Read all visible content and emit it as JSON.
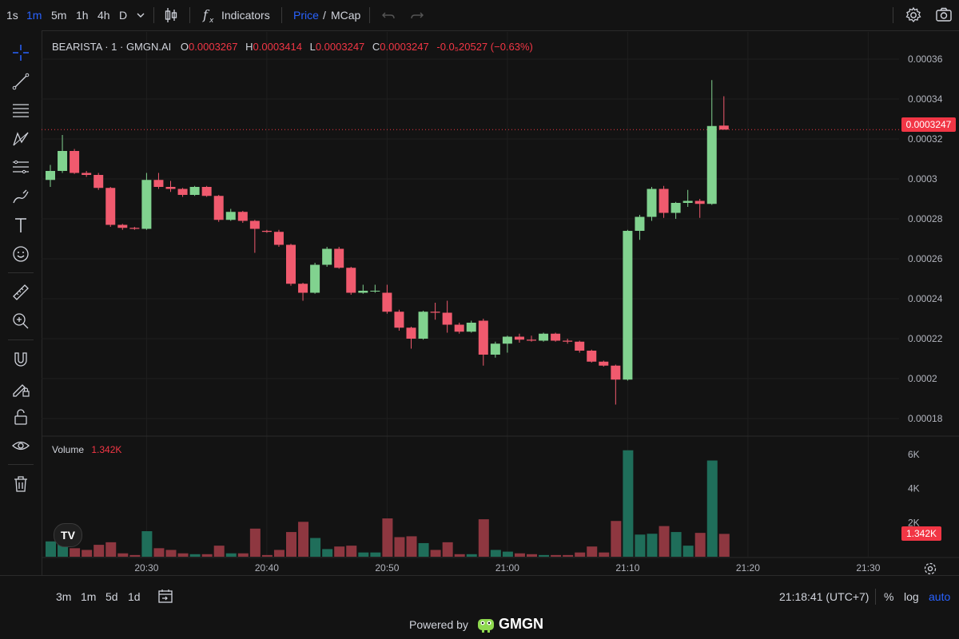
{
  "toolbar": {
    "intervals": [
      "1s",
      "1m",
      "5m",
      "1h",
      "4h",
      "D"
    ],
    "active_interval": "1m",
    "indicators_label": "Indicators",
    "price_label": "Price",
    "slash": "/",
    "mcap_label": "MCap"
  },
  "legend": {
    "symbol": "BEARISTA · 1 · GMGN.AI",
    "o_key": "O",
    "o_val": "0.0003267",
    "h_key": "H",
    "h_val": "0.0003414",
    "l_key": "L",
    "l_val": "0.0003247",
    "c_key": "C",
    "c_val": "0.0003247",
    "change": "-0.0₅20527 (−0.63%)"
  },
  "volume_legend": {
    "label": "Volume",
    "value": "1.342K"
  },
  "price_tag": "0.0003247",
  "volume_tag": "1.342K",
  "bottom": {
    "ranges": [
      "3m",
      "1m",
      "5d",
      "1d"
    ],
    "clock": "21:18:41 (UTC+7)",
    "percent": "%",
    "log": "log",
    "auto": "auto"
  },
  "footer": {
    "powered": "Powered by",
    "brand": "GMGN"
  },
  "colors": {
    "up": "#81d28f",
    "down": "#f05a6e",
    "vol_up": "#1f6e5a",
    "vol_down": "#8e3740",
    "accent": "#2962ff"
  },
  "chart_data": {
    "type": "candlestick",
    "price_axis_ticks": [
      "0.00036",
      "0.00034",
      "0.00032",
      "0.0003",
      "0.00028",
      "0.00026",
      "0.00024",
      "0.00022",
      "0.0002",
      "0.00018"
    ],
    "volume_axis_ticks": [
      "6K",
      "4K",
      "2K"
    ],
    "x_ticks": [
      "20:30",
      "20:40",
      "20:50",
      "21:00",
      "21:10",
      "21:20",
      "21:30"
    ],
    "price_ylim": [
      0.000172,
      0.000368
    ],
    "volume_ylim": [
      0,
      6800
    ],
    "current_price": 0.0003247,
    "candles": [
      {
        "o": 0.0002995,
        "h": 0.000307,
        "l": 0.000296,
        "c": 0.000304,
        "v": 900
      },
      {
        "o": 0.000304,
        "h": 0.000322,
        "l": 0.000303,
        "c": 0.000314,
        "v": 1100
      },
      {
        "o": 0.000314,
        "h": 0.000315,
        "l": 0.0003025,
        "c": 0.000303,
        "v": 500
      },
      {
        "o": 0.000303,
        "h": 0.000304,
        "l": 0.000301,
        "c": 0.000302,
        "v": 400
      },
      {
        "o": 0.000302,
        "h": 0.000303,
        "l": 0.0002945,
        "c": 0.0002955,
        "v": 700
      },
      {
        "o": 0.0002955,
        "h": 0.000296,
        "l": 0.000276,
        "c": 0.000277,
        "v": 850
      },
      {
        "o": 0.000277,
        "h": 0.0002775,
        "l": 0.0002745,
        "c": 0.0002755,
        "v": 200
      },
      {
        "o": 0.0002755,
        "h": 0.000276,
        "l": 0.0002745,
        "c": 0.000275,
        "v": 100
      },
      {
        "o": 0.000275,
        "h": 0.000303,
        "l": 0.0002745,
        "c": 0.0002995,
        "v": 1500
      },
      {
        "o": 0.0002995,
        "h": 0.000303,
        "l": 0.000295,
        "c": 0.000296,
        "v": 500
      },
      {
        "o": 0.000296,
        "h": 0.000299,
        "l": 0.0002935,
        "c": 0.000295,
        "v": 400
      },
      {
        "o": 0.000295,
        "h": 0.0002955,
        "l": 0.000291,
        "c": 0.000292,
        "v": 200
      },
      {
        "o": 0.000292,
        "h": 0.0002965,
        "l": 0.0002915,
        "c": 0.000296,
        "v": 150
      },
      {
        "o": 0.000296,
        "h": 0.0002965,
        "l": 0.000291,
        "c": 0.0002915,
        "v": 150
      },
      {
        "o": 0.0002915,
        "h": 0.000292,
        "l": 0.0002785,
        "c": 0.0002795,
        "v": 650
      },
      {
        "o": 0.0002795,
        "h": 0.000285,
        "l": 0.000279,
        "c": 0.0002835,
        "v": 200
      },
      {
        "o": 0.0002835,
        "h": 0.000284,
        "l": 0.000278,
        "c": 0.000279,
        "v": 200
      },
      {
        "o": 0.000279,
        "h": 0.0002795,
        "l": 0.000263,
        "c": 0.000275,
        "v": 1650
      },
      {
        "o": 0.000274,
        "h": 0.0002745,
        "l": 0.000273,
        "c": 0.0002735,
        "v": 100
      },
      {
        "o": 0.0002735,
        "h": 0.0002745,
        "l": 0.000266,
        "c": 0.000267,
        "v": 400
      },
      {
        "o": 0.000267,
        "h": 0.0002675,
        "l": 0.0002465,
        "c": 0.0002475,
        "v": 1450
      },
      {
        "o": 0.0002475,
        "h": 0.000248,
        "l": 0.000239,
        "c": 0.000243,
        "v": 2050
      },
      {
        "o": 0.000243,
        "h": 0.000258,
        "l": 0.0002425,
        "c": 0.000257,
        "v": 1100
      },
      {
        "o": 0.000257,
        "h": 0.000266,
        "l": 0.000256,
        "c": 0.000265,
        "v": 450
      },
      {
        "o": 0.000265,
        "h": 0.000266,
        "l": 0.000255,
        "c": 0.0002555,
        "v": 600
      },
      {
        "o": 0.0002555,
        "h": 0.000256,
        "l": 0.000242,
        "c": 0.000243,
        "v": 650
      },
      {
        "o": 0.000243,
        "h": 0.000247,
        "l": 0.0002425,
        "c": 0.000244,
        "v": 250
      },
      {
        "o": 0.000244,
        "h": 0.000247,
        "l": 0.000243,
        "c": 0.000244,
        "v": 250
      },
      {
        "o": 0.000243,
        "h": 0.000247,
        "l": 0.0002325,
        "c": 0.0002335,
        "v": 2250
      },
      {
        "o": 0.0002335,
        "h": 0.0002345,
        "l": 0.000224,
        "c": 0.0002255,
        "v": 1150
      },
      {
        "o": 0.0002255,
        "h": 0.000226,
        "l": 0.000215,
        "c": 0.00022,
        "v": 1200
      },
      {
        "o": 0.00022,
        "h": 0.000234,
        "l": 0.0002195,
        "c": 0.0002335,
        "v": 800
      },
      {
        "o": 0.0002335,
        "h": 0.000238,
        "l": 0.0002295,
        "c": 0.000233,
        "v": 400
      },
      {
        "o": 0.000233,
        "h": 0.000239,
        "l": 0.000223,
        "c": 0.000227,
        "v": 850
      },
      {
        "o": 0.000227,
        "h": 0.000228,
        "l": 0.0002225,
        "c": 0.0002235,
        "v": 150
      },
      {
        "o": 0.0002235,
        "h": 0.000229,
        "l": 0.000223,
        "c": 0.000228,
        "v": 150
      },
      {
        "o": 0.000229,
        "h": 0.00023,
        "l": 0.0002065,
        "c": 0.000212,
        "v": 2200
      },
      {
        "o": 0.000212,
        "h": 0.0002185,
        "l": 0.0002105,
        "c": 0.0002175,
        "v": 400
      },
      {
        "o": 0.0002175,
        "h": 0.0002215,
        "l": 0.000213,
        "c": 0.000221,
        "v": 300
      },
      {
        "o": 0.000221,
        "h": 0.0002225,
        "l": 0.000218,
        "c": 0.0002195,
        "v": 200
      },
      {
        "o": 0.0002195,
        "h": 0.0002215,
        "l": 0.0002185,
        "c": 0.000219,
        "v": 150
      },
      {
        "o": 0.000219,
        "h": 0.000223,
        "l": 0.0002185,
        "c": 0.0002225,
        "v": 100
      },
      {
        "o": 0.0002225,
        "h": 0.000223,
        "l": 0.0002185,
        "c": 0.000219,
        "v": 100
      },
      {
        "o": 0.000219,
        "h": 0.00022,
        "l": 0.0002175,
        "c": 0.0002185,
        "v": 100
      },
      {
        "o": 0.0002185,
        "h": 0.000219,
        "l": 0.000213,
        "c": 0.000214,
        "v": 250
      },
      {
        "o": 0.000214,
        "h": 0.0002145,
        "l": 0.000208,
        "c": 0.0002085,
        "v": 600
      },
      {
        "o": 0.0002085,
        "h": 0.000209,
        "l": 0.000206,
        "c": 0.0002065,
        "v": 250
      },
      {
        "o": 0.0002065,
        "h": 0.000207,
        "l": 0.000187,
        "c": 0.0001995,
        "v": 2100
      },
      {
        "o": 0.0001995,
        "h": 0.0002745,
        "l": 0.000199,
        "c": 0.000274,
        "v": 6250
      },
      {
        "o": 0.000274,
        "h": 0.000282,
        "l": 0.0002695,
        "c": 0.000281,
        "v": 1300
      },
      {
        "o": 0.000281,
        "h": 0.000296,
        "l": 0.000279,
        "c": 0.000295,
        "v": 1350
      },
      {
        "o": 0.000295,
        "h": 0.0002965,
        "l": 0.0002805,
        "c": 0.000283,
        "v": 1800
      },
      {
        "o": 0.000283,
        "h": 0.0002885,
        "l": 0.00028,
        "c": 0.000288,
        "v": 1450
      },
      {
        "o": 0.000288,
        "h": 0.0002945,
        "l": 0.000286,
        "c": 0.000289,
        "v": 650
      },
      {
        "o": 0.000289,
        "h": 0.00029,
        "l": 0.0002805,
        "c": 0.0002875,
        "v": 1400
      },
      {
        "o": 0.0002875,
        "h": 0.0003495,
        "l": 0.000287,
        "c": 0.0003265,
        "v": 5650
      },
      {
        "o": 0.0003267,
        "h": 0.0003414,
        "l": 0.0003247,
        "c": 0.0003247,
        "v": 1342
      }
    ]
  }
}
